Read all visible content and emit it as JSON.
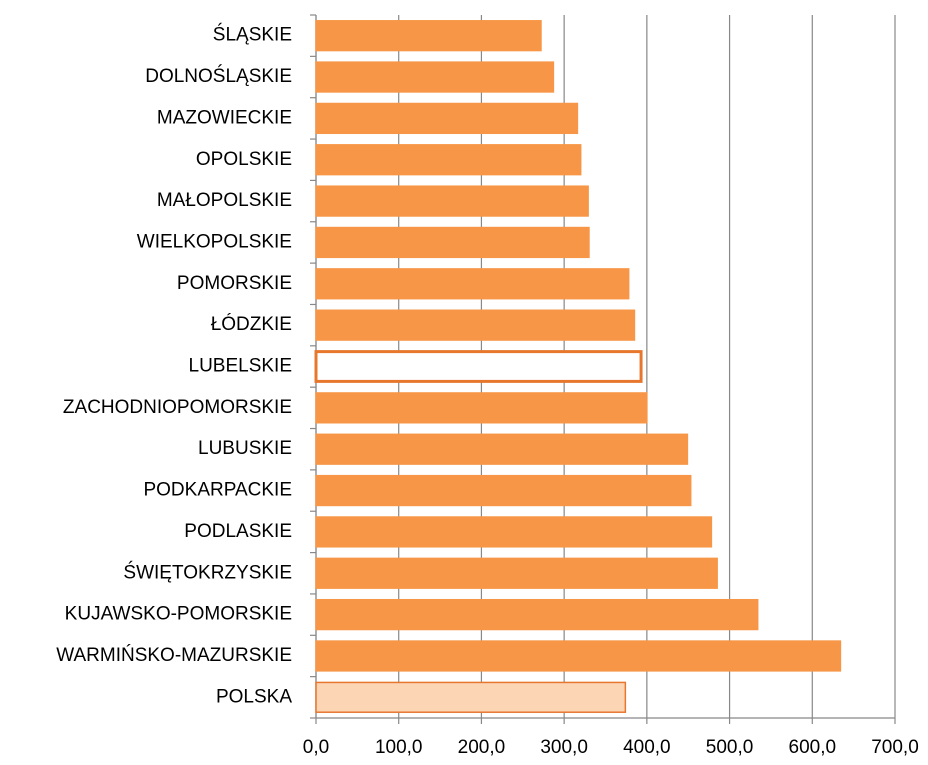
{
  "chart_data": {
    "type": "hbar",
    "categories": [
      "ŚLĄSKIE",
      "DOLNOŚLĄSKIE",
      "MAZOWIECKIE",
      "OPOLSKIE",
      "MAŁOPOLSKIE",
      "WIELKOPOLSKIE",
      "POMORSKIE",
      "ŁÓDZKIE",
      "LUBELSKIE",
      "ZACHODNIOPOMORSKIE",
      "LUBUSKIE",
      "PODKARPACKIE",
      "PODLASKIE",
      "ŚWIĘTOKRZYSKIE",
      "KUJAWSKO-POMORSKIE",
      "WARMIŃSKO-MAZURSKIE",
      "POLSKA"
    ],
    "values": [
      272,
      287,
      316,
      320,
      329,
      330,
      378,
      385,
      393,
      400,
      449,
      453,
      478,
      485,
      534,
      634,
      374
    ],
    "colors": [
      "#F79646",
      "#F79646",
      "#F79646",
      "#F79646",
      "#F79646",
      "#F79646",
      "#F79646",
      "#F79646",
      "#FFFFFF",
      "#F79646",
      "#F79646",
      "#F79646",
      "#F79646",
      "#F79646",
      "#F79646",
      "#F79646",
      "#FCD5B5"
    ],
    "edge_color": "#E8772E",
    "xlim": [
      0,
      700
    ],
    "xticks": [
      {
        "value": 0,
        "label": "0,0"
      },
      {
        "value": 100,
        "label": "100,0"
      },
      {
        "value": 200,
        "label": "200,0"
      },
      {
        "value": 300,
        "label": "300,0"
      },
      {
        "value": 400,
        "label": "400,0"
      },
      {
        "value": 500,
        "label": "500,0"
      },
      {
        "value": 600,
        "label": "600,0"
      },
      {
        "value": 700,
        "label": "700,0"
      }
    ],
    "grid": true
  }
}
